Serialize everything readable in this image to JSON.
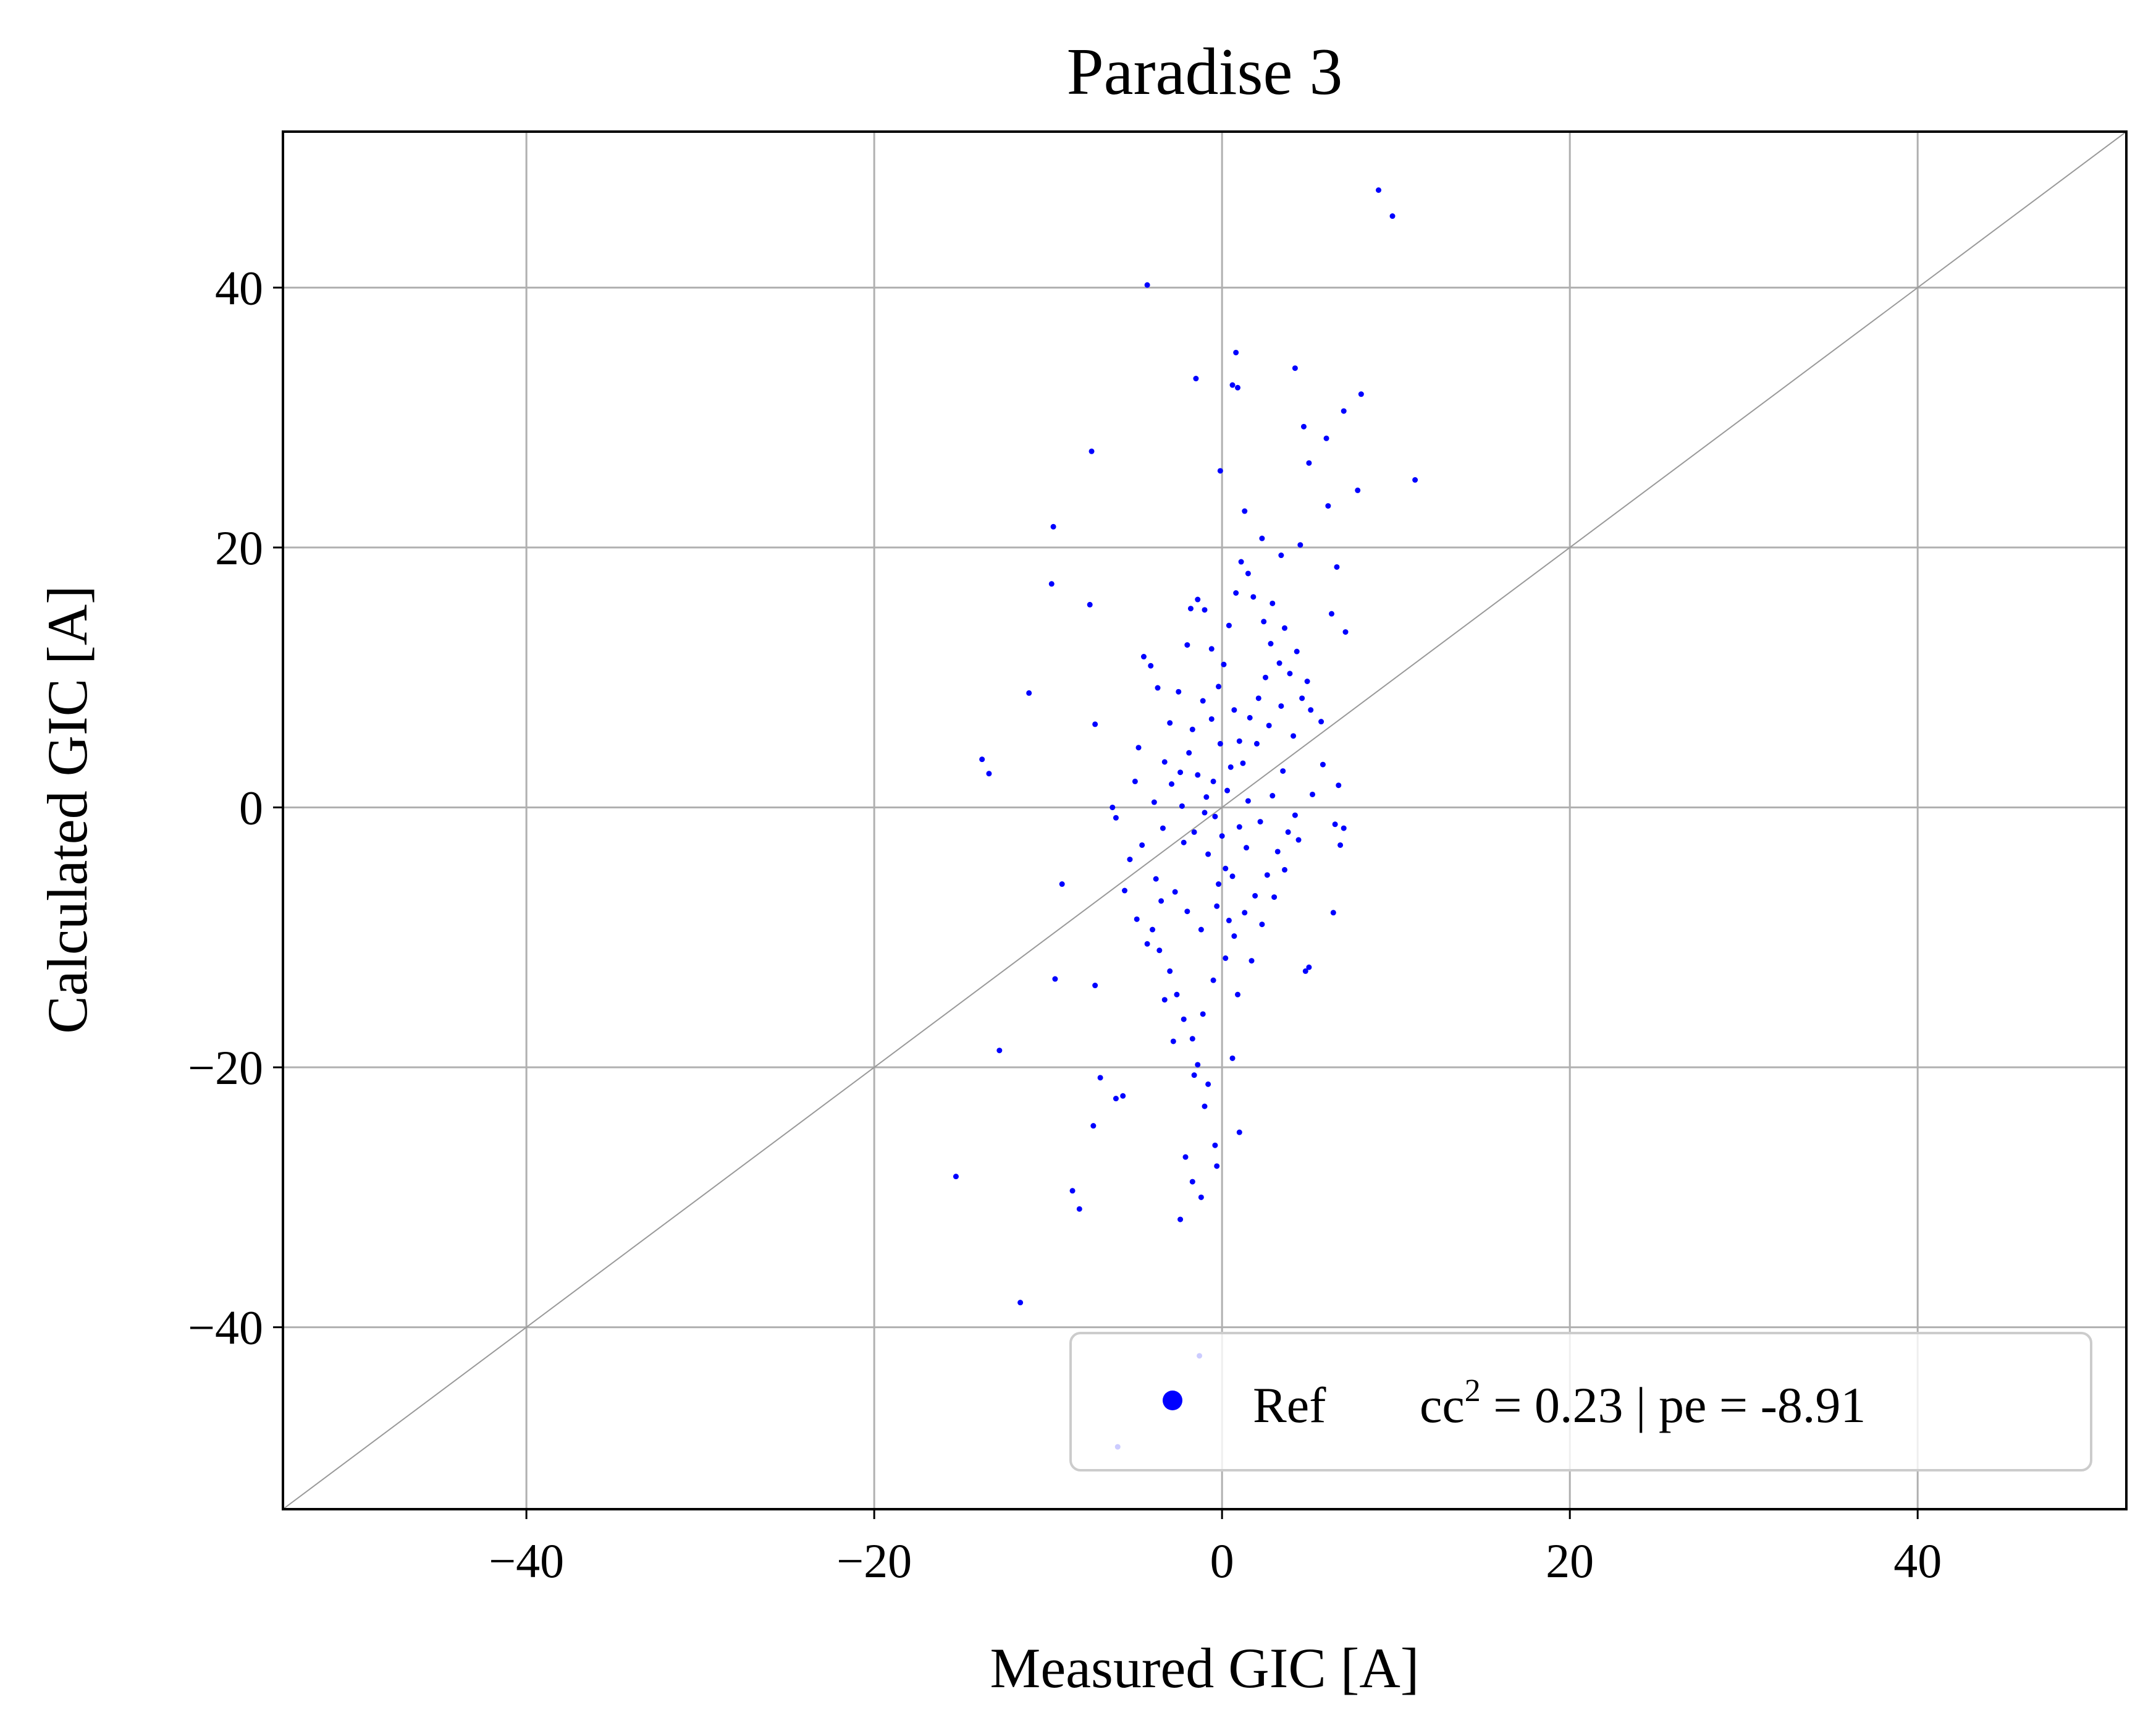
{
  "chart_data": {
    "type": "scatter",
    "title": "Paradise 3",
    "xlabel": "Measured GIC [A]",
    "ylabel": "Calculated GIC [A]",
    "xlim": [
      -54,
      52
    ],
    "ylim": [
      -54,
      52
    ],
    "xticks": [
      -40,
      -20,
      0,
      20,
      40
    ],
    "yticks": [
      -40,
      -20,
      0,
      20,
      40
    ],
    "xtick_labels": [
      "−40",
      "−20",
      "0",
      "20",
      "40"
    ],
    "ytick_labels": [
      "−40",
      "−20",
      "0",
      "20",
      "40"
    ],
    "grid": true,
    "reference_line": "y = x",
    "legend": {
      "placement": "lower-right",
      "series_name": "Ref",
      "stat_prefix": "cc",
      "stat_exponent": "2",
      "stat_suffix": " = 0.23 | pe = -8.91"
    },
    "colors": {
      "points": "#0000ff",
      "grid": "#b0b0b0",
      "diagonal": "#999999",
      "frame": "#000000"
    },
    "series": [
      {
        "name": "Ref",
        "points": [
          [
            9.0,
            47.5
          ],
          [
            9.8,
            45.5
          ],
          [
            -4.3,
            40.2
          ],
          [
            0.8,
            35.0
          ],
          [
            -1.5,
            33.0
          ],
          [
            0.6,
            32.5
          ],
          [
            0.9,
            32.3
          ],
          [
            4.2,
            33.8
          ],
          [
            8.0,
            31.8
          ],
          [
            7.0,
            30.5
          ],
          [
            4.7,
            29.3
          ],
          [
            6.0,
            28.4
          ],
          [
            -7.5,
            27.4
          ],
          [
            -0.1,
            25.9
          ],
          [
            11.1,
            25.2
          ],
          [
            5.0,
            26.5
          ],
          [
            7.8,
            24.4
          ],
          [
            6.1,
            23.2
          ],
          [
            1.3,
            22.8
          ],
          [
            -9.7,
            21.6
          ],
          [
            2.3,
            20.7
          ],
          [
            4.5,
            20.2
          ],
          [
            3.4,
            19.4
          ],
          [
            6.6,
            18.5
          ],
          [
            -9.8,
            17.2
          ],
          [
            -7.6,
            15.6
          ],
          [
            -11.1,
            8.8
          ],
          [
            -7.3,
            6.4
          ],
          [
            -4.5,
            11.6
          ],
          [
            -4.1,
            10.9
          ],
          [
            7.1,
            13.5
          ],
          [
            6.3,
            14.9
          ],
          [
            -13.8,
            3.7
          ],
          [
            -13.4,
            2.6
          ],
          [
            -6.3,
            0.0
          ],
          [
            -6.1,
            -0.8
          ],
          [
            6.7,
            1.7
          ],
          [
            6.5,
            -1.3
          ],
          [
            7.0,
            -1.6
          ],
          [
            6.8,
            -2.9
          ],
          [
            6.4,
            -8.1
          ],
          [
            5.0,
            -12.3
          ],
          [
            4.8,
            -12.6
          ],
          [
            -9.2,
            -5.9
          ],
          [
            -9.6,
            -13.2
          ],
          [
            -7.3,
            -13.7
          ],
          [
            -12.8,
            -18.7
          ],
          [
            -7.0,
            -20.8
          ],
          [
            -6.1,
            -22.4
          ],
          [
            -5.7,
            -22.2
          ],
          [
            -7.4,
            -24.5
          ],
          [
            -8.6,
            -29.5
          ],
          [
            -8.2,
            -30.9
          ],
          [
            -15.3,
            -28.4
          ],
          [
            -11.6,
            -38.1
          ],
          [
            -2.1,
            -26.9
          ],
          [
            -2.4,
            -31.7
          ],
          [
            -1.7,
            -28.8
          ],
          [
            -1.0,
            -23.0
          ],
          [
            -0.8,
            -21.3
          ],
          [
            -0.4,
            -26.0
          ],
          [
            -0.3,
            -27.6
          ],
          [
            1.0,
            -25.0
          ],
          [
            0.6,
            -19.3
          ],
          [
            -1.4,
            -19.8
          ],
          [
            -1.2,
            -30.0
          ],
          [
            -1.3,
            -42.2
          ],
          [
            -6.0,
            -49.2
          ],
          [
            -3.3,
            3.5
          ],
          [
            -3.0,
            6.5
          ],
          [
            -2.5,
            8.9
          ],
          [
            -2.2,
            -2.7
          ],
          [
            -2.0,
            12.5
          ],
          [
            -1.8,
            15.3
          ],
          [
            -1.4,
            16.0
          ],
          [
            -1.0,
            15.2
          ],
          [
            -0.6,
            12.2
          ],
          [
            -0.2,
            9.3
          ],
          [
            0.1,
            11.0
          ],
          [
            0.4,
            14.0
          ],
          [
            0.8,
            16.5
          ],
          [
            1.1,
            18.9
          ],
          [
            1.5,
            18.0
          ],
          [
            1.8,
            16.2
          ],
          [
            2.4,
            14.3
          ],
          [
            2.8,
            12.6
          ],
          [
            3.3,
            11.1
          ],
          [
            3.9,
            10.3
          ],
          [
            4.6,
            8.4
          ],
          [
            5.1,
            7.5
          ],
          [
            5.7,
            6.6
          ],
          [
            -3.8,
            -5.5
          ],
          [
            -3.5,
            -7.2
          ],
          [
            -4.0,
            -9.4
          ],
          [
            -3.6,
            -11.0
          ],
          [
            -3.0,
            -12.6
          ],
          [
            -2.6,
            -14.4
          ],
          [
            -2.2,
            -16.3
          ],
          [
            -1.7,
            -17.8
          ],
          [
            -1.1,
            -15.9
          ],
          [
            -0.5,
            -13.3
          ],
          [
            0.2,
            -11.6
          ],
          [
            0.7,
            -9.9
          ],
          [
            1.3,
            -8.1
          ],
          [
            1.9,
            -6.8
          ],
          [
            2.6,
            -5.2
          ],
          [
            3.2,
            -3.4
          ],
          [
            3.8,
            -1.9
          ],
          [
            4.2,
            -0.6
          ],
          [
            -4.6,
            -2.9
          ],
          [
            -5.0,
            2.0
          ],
          [
            -4.8,
            4.6
          ],
          [
            -1.9,
            4.2
          ],
          [
            -1.4,
            2.5
          ],
          [
            -0.9,
            0.8
          ],
          [
            -0.4,
            -0.7
          ],
          [
            0.0,
            -2.2
          ],
          [
            0.5,
            3.1
          ],
          [
            1.0,
            5.1
          ],
          [
            1.6,
            6.9
          ],
          [
            2.1,
            8.4
          ],
          [
            2.5,
            10.0
          ],
          [
            -2.7,
            -6.5
          ],
          [
            -2.0,
            -8.0
          ],
          [
            -1.2,
            -9.4
          ],
          [
            -0.3,
            -7.6
          ],
          [
            0.6,
            -5.3
          ],
          [
            1.4,
            -3.1
          ],
          [
            2.2,
            -1.1
          ],
          [
            2.9,
            0.9
          ],
          [
            3.5,
            2.8
          ],
          [
            -3.9,
            0.4
          ],
          [
            -3.4,
            -1.6
          ],
          [
            -2.9,
            1.8
          ],
          [
            -2.3,
            0.1
          ],
          [
            -1.6,
            -1.9
          ],
          [
            -0.8,
            -3.6
          ],
          [
            0.3,
            1.3
          ],
          [
            1.2,
            3.4
          ],
          [
            2.0,
            4.9
          ],
          [
            2.7,
            6.3
          ],
          [
            3.4,
            7.8
          ],
          [
            4.1,
            5.5
          ],
          [
            -5.3,
            -4.0
          ],
          [
            -5.6,
            -6.4
          ],
          [
            -4.9,
            -8.6
          ],
          [
            -4.3,
            -10.5
          ],
          [
            -3.3,
            -14.8
          ],
          [
            -2.8,
            -18.0
          ],
          [
            -1.6,
            -20.6
          ],
          [
            0.9,
            -14.4
          ],
          [
            1.7,
            -11.8
          ],
          [
            2.3,
            -9.0
          ],
          [
            3.0,
            -6.9
          ],
          [
            3.6,
            -4.8
          ],
          [
            4.4,
            -2.5
          ],
          [
            5.2,
            1.0
          ],
          [
            5.8,
            3.3
          ],
          [
            4.9,
            9.7
          ],
          [
            4.3,
            12.0
          ],
          [
            3.6,
            13.8
          ],
          [
            2.9,
            15.7
          ],
          [
            -0.1,
            4.9
          ],
          [
            -0.6,
            6.8
          ],
          [
            -1.1,
            8.2
          ],
          [
            -1.7,
            6.0
          ],
          [
            -2.4,
            2.7
          ],
          [
            0.2,
            -4.7
          ],
          [
            -0.2,
            -5.9
          ],
          [
            0.4,
            -8.7
          ],
          [
            1.0,
            -1.5
          ],
          [
            1.5,
            0.5
          ],
          [
            -0.5,
            2.0
          ],
          [
            -1.0,
            -0.4
          ],
          [
            0.7,
            7.5
          ],
          [
            -3.7,
            9.2
          ]
        ]
      }
    ]
  }
}
